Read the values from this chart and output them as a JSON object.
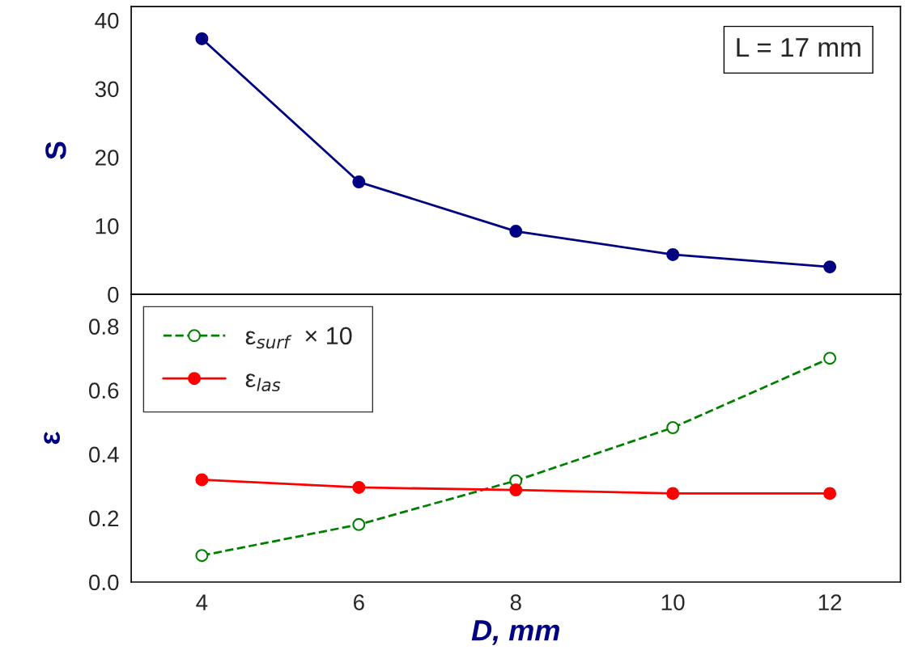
{
  "chart_data": [
    {
      "type": "line",
      "ylabel": "S",
      "x": [
        4,
        6,
        8,
        10,
        12
      ],
      "xlim": [
        3.1,
        12.9
      ],
      "xticks": [
        4,
        6,
        8,
        10,
        12
      ],
      "ylim": [
        0,
        42
      ],
      "yticks": [
        0,
        10,
        20,
        30,
        40
      ],
      "tick_labels": "y",
      "marker": "circle",
      "line_style": "solid",
      "grid": false,
      "legend": false,
      "series": [
        {
          "color": "#000080",
          "values": [
            37.3,
            16.4,
            9.2,
            5.8,
            4.0
          ]
        }
      ],
      "annotations": [
        "L = 17 mm"
      ]
    },
    {
      "type": "line",
      "ylabel": "ε",
      "xlabel": "D, mm",
      "x": [
        4,
        6,
        8,
        10,
        12
      ],
      "xlim": [
        3.1,
        12.9
      ],
      "xticks": [
        4,
        6,
        8,
        10,
        12
      ],
      "ylim": [
        0,
        0.9
      ],
      "yticks": [
        {
          "value": 0,
          "label": "0.0"
        },
        {
          "value": 0.2,
          "label": "0.2"
        },
        {
          "value": 0.4,
          "label": "0.4"
        },
        {
          "value": 0.6,
          "label": "0.6"
        },
        {
          "value": 0.8,
          "label": "0.8"
        }
      ],
      "grid": false,
      "legend": "top left",
      "series": [
        {
          "name": "ε$_{surf}$  × 10",
          "color": "#008000",
          "values": [
            0.083,
            0.18,
            0.317,
            0.483,
            0.7
          ],
          "marker": "circle",
          "line_style": "dashed"
        },
        {
          "name": "ε$_{las}$",
          "color": "#ff0000",
          "values": [
            0.32,
            0.296,
            0.288,
            0.277,
            0.277
          ],
          "marker": "circle",
          "line_style": "solid"
        }
      ]
    }
  ]
}
